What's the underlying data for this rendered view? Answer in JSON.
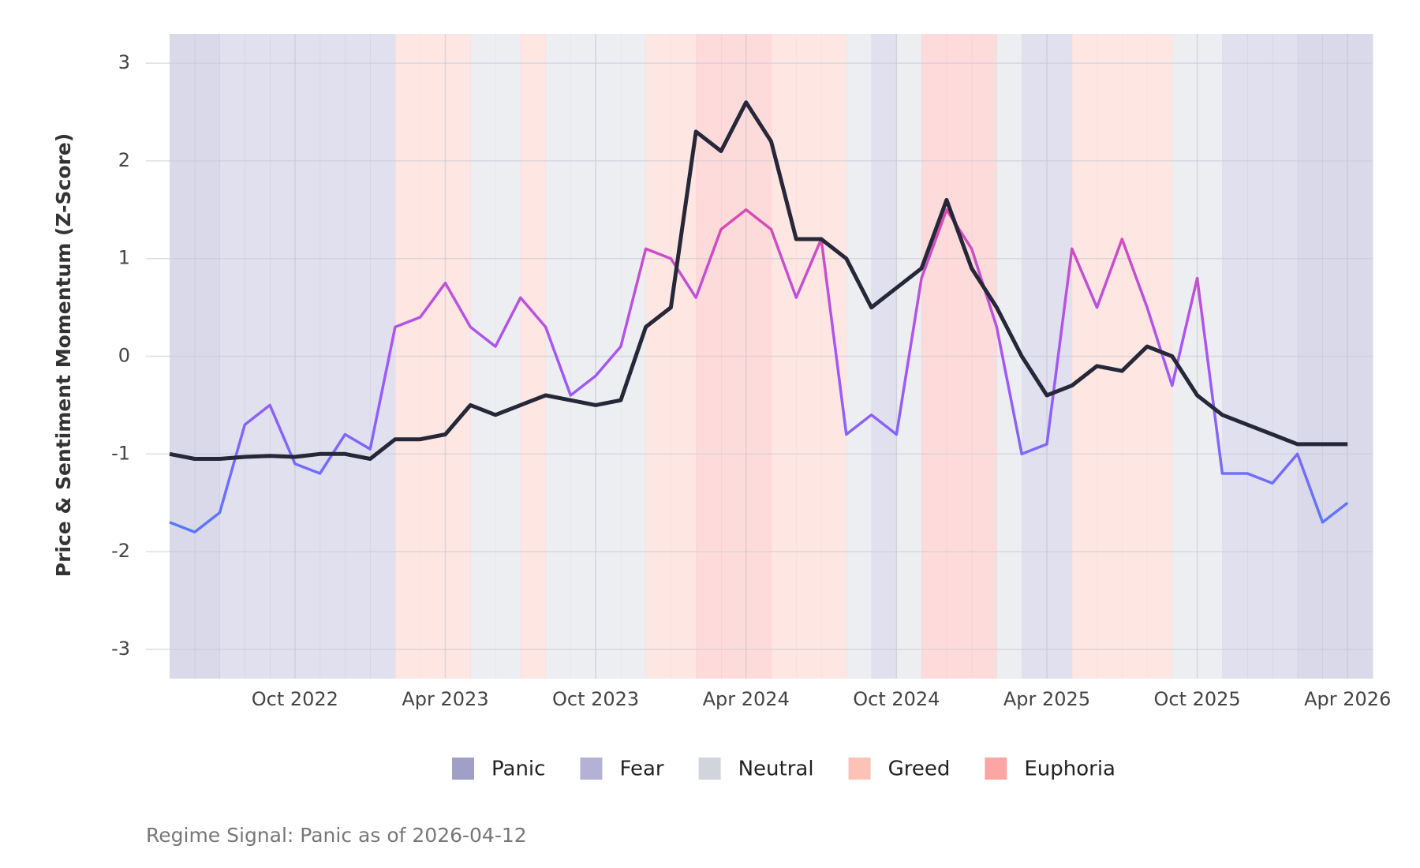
{
  "chart_data": {
    "type": "line",
    "y_label": "Price & Sentiment Momentum (Z-Score)",
    "caption": "Regime Signal: Panic as of 2026-04-12",
    "x": [
      "2022-05",
      "2022-06",
      "2022-07",
      "2022-08",
      "2022-09",
      "2022-10",
      "2022-11",
      "2022-12",
      "2023-01",
      "2023-02",
      "2023-03",
      "2023-04",
      "2023-05",
      "2023-06",
      "2023-07",
      "2023-08",
      "2023-09",
      "2023-10",
      "2023-11",
      "2023-12",
      "2024-01",
      "2024-02",
      "2024-03",
      "2024-04",
      "2024-05",
      "2024-06",
      "2024-07",
      "2024-08",
      "2024-09",
      "2024-10",
      "2024-11",
      "2024-12",
      "2025-01",
      "2025-02",
      "2025-03",
      "2025-04",
      "2025-05",
      "2025-06",
      "2025-07",
      "2025-08",
      "2025-09",
      "2025-10",
      "2025-11",
      "2025-12",
      "2026-01",
      "2026-02",
      "2026-03",
      "2026-04"
    ],
    "regime": [
      "Panic",
      "Panic",
      "Fear",
      "Fear",
      "Fear",
      "Fear",
      "Fear",
      "Fear",
      "Fear",
      "Greed",
      "Greed",
      "Greed",
      "Neutral",
      "Neutral",
      "Greed",
      "Neutral",
      "Neutral",
      "Neutral",
      "Neutral",
      "Greed",
      "Greed",
      "Euphoria",
      "Euphoria",
      "Euphoria",
      "Greed",
      "Greed",
      "Greed",
      "Neutral",
      "Fear",
      "Neutral",
      "Euphoria",
      "Euphoria",
      "Euphoria",
      "Neutral",
      "Fear",
      "Fear",
      "Greed",
      "Greed",
      "Greed",
      "Greed",
      "Neutral",
      "Neutral",
      "Fear",
      "Fear",
      "Fear",
      "Panic",
      "Panic",
      "Panic"
    ],
    "legend": {
      "names": [
        "Panic",
        "Fear",
        "Neutral",
        "Greed",
        "Euphoria"
      ],
      "colors": [
        "#a09fc8",
        "#b3b2d6",
        "#d1d5db",
        "#fdc2b6",
        "#fca5a5"
      ]
    },
    "series": [
      {
        "color": [
          "#4f7dfb",
          "#a855f7",
          "#ec4899"
        ],
        "values": [
          -1.7,
          -1.8,
          -1.6,
          -0.7,
          -0.5,
          -1.1,
          -1.2,
          -0.8,
          -0.95,
          0.3,
          0.4,
          0.75,
          0.3,
          0.1,
          0.6,
          0.3,
          -0.4,
          -0.2,
          0.1,
          1.1,
          1.0,
          0.6,
          1.3,
          1.5,
          1.3,
          0.6,
          1.2,
          -0.8,
          -0.6,
          -0.8,
          0.8,
          1.5,
          1.1,
          0.3,
          -1.0,
          -0.9,
          1.1,
          0.5,
          1.2,
          0.5,
          -0.3,
          0.8,
          -1.2,
          -1.2,
          -1.3,
          -1.0,
          -1.7,
          -1.5
        ]
      },
      {
        "color": "#262738",
        "values": [
          -1.0,
          -1.05,
          -1.05,
          -1.03,
          -1.02,
          -1.03,
          -1.0,
          -1.0,
          -1.05,
          -0.85,
          -0.85,
          -0.8,
          -0.5,
          -0.6,
          -0.5,
          -0.4,
          -0.45,
          -0.5,
          -0.45,
          0.3,
          0.5,
          2.3,
          2.1,
          2.6,
          2.2,
          1.2,
          1.2,
          1.0,
          0.5,
          0.7,
          0.9,
          1.6,
          0.9,
          0.5,
          0.0,
          -0.4,
          -0.3,
          -0.1,
          -0.15,
          0.1,
          0.0,
          -0.4,
          -0.6,
          -0.7,
          -0.8,
          -0.9,
          -0.9,
          -0.9
        ]
      }
    ],
    "xlim": [
      "2022-05",
      "2026-05"
    ],
    "xticks": [
      {
        "value": "2022-10",
        "label": "Oct 2022"
      },
      {
        "value": "2023-04",
        "label": "Apr 2023"
      },
      {
        "value": "2023-10",
        "label": "Oct 2023"
      },
      {
        "value": "2024-04",
        "label": "Apr 2024"
      },
      {
        "value": "2024-10",
        "label": "Oct 2024"
      },
      {
        "value": "2025-04",
        "label": "Apr 2025"
      },
      {
        "value": "2025-10",
        "label": "Oct 2025"
      },
      {
        "value": "2026-04",
        "label": "Apr 2026"
      }
    ],
    "ylim": [
      -3.3,
      3.3
    ],
    "yticks": [
      -3,
      -2,
      -1,
      0,
      1,
      2,
      3
    ],
    "grid": true
  }
}
